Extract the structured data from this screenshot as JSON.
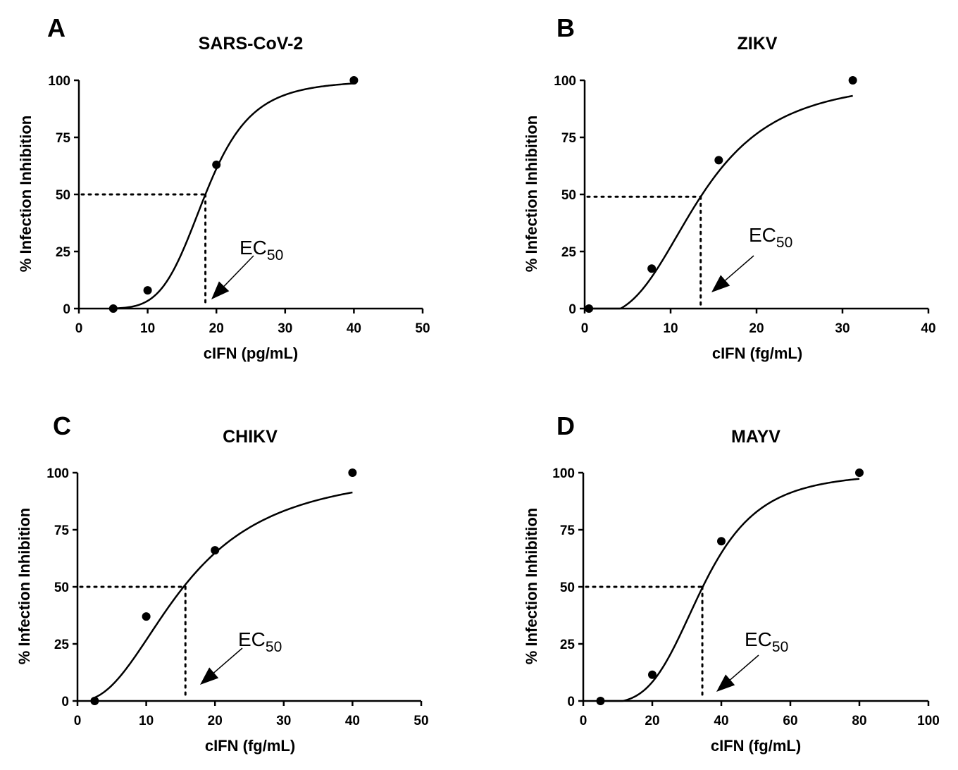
{
  "chart_data": [
    {
      "type": "line",
      "panel": "A",
      "title": "SARS-CoV-2",
      "xlabel": "cIFN (pg/mL)",
      "ylabel": "% Infection Inhibition",
      "xlim": [
        0,
        50
      ],
      "ylim": [
        0,
        100
      ],
      "xticks": [
        0,
        10,
        20,
        30,
        40,
        50
      ],
      "yticks": [
        0,
        25,
        50,
        75,
        100
      ],
      "points": [
        [
          5,
          0
        ],
        [
          10,
          8
        ],
        [
          20,
          63
        ],
        [
          40,
          100
        ]
      ],
      "curve": {
        "bottom": 0,
        "top": 100,
        "ec50": 18.4,
        "hill": 5.5,
        "xstart": 5,
        "xend": 40
      },
      "ec50_value": 18.4,
      "ec50_y": 50,
      "annotation": {
        "main": "EC",
        "sub": "50"
      }
    },
    {
      "type": "line",
      "panel": "B",
      "title": "ZIKV",
      "xlabel": "cIFN (fg/mL)",
      "ylabel": "% Infection Inhibition",
      "xlim": [
        0,
        40
      ],
      "ylim": [
        0,
        100
      ],
      "xticks": [
        0,
        10,
        20,
        30,
        40
      ],
      "yticks": [
        0,
        25,
        50,
        75,
        100
      ],
      "points": [
        [
          0.5,
          0
        ],
        [
          7.8,
          17.5
        ],
        [
          15.6,
          65
        ],
        [
          31.2,
          100
        ]
      ],
      "curve": {
        "bottom": -3,
        "top": 101,
        "ec50": 13.5,
        "hill": 3.0,
        "xstart": 0,
        "xend": 31.2
      },
      "ec50_value": 13.5,
      "ec50_y": 49,
      "annotation": {
        "main": "EC",
        "sub": "50"
      }
    },
    {
      "type": "line",
      "panel": "C",
      "title": "CHIKV",
      "xlabel": "cIFN (fg/mL)",
      "ylabel": "% Infection Inhibition",
      "xlim": [
        0,
        50
      ],
      "ylim": [
        0,
        100
      ],
      "xticks": [
        0,
        10,
        20,
        30,
        40,
        50
      ],
      "yticks": [
        0,
        25,
        50,
        75,
        100
      ],
      "points": [
        [
          2.5,
          0
        ],
        [
          10,
          37
        ],
        [
          20,
          66
        ],
        [
          40,
          100
        ]
      ],
      "curve": {
        "bottom": 0,
        "top": 102,
        "ec50": 15.7,
        "hill": 2.3,
        "xstart": 2.5,
        "xend": 40
      },
      "ec50_value": 15.7,
      "ec50_y": 50,
      "annotation": {
        "main": "EC",
        "sub": "50"
      }
    },
    {
      "type": "line",
      "panel": "D",
      "title": "MAYV",
      "xlabel": "cIFN (fg/mL)",
      "ylabel": "% Infection Inhibition",
      "xlim": [
        0,
        100
      ],
      "ylim": [
        0,
        100
      ],
      "xticks": [
        0,
        20,
        40,
        60,
        80,
        100
      ],
      "yticks": [
        0,
        25,
        50,
        75,
        100
      ],
      "points": [
        [
          5,
          0
        ],
        [
          20,
          11.5
        ],
        [
          40,
          70
        ],
        [
          80,
          100
        ]
      ],
      "curve": {
        "bottom": -1,
        "top": 100.2,
        "ec50": 34.5,
        "hill": 4.2,
        "xstart": 5,
        "xend": 80
      },
      "ec50_value": 34.5,
      "ec50_y": 50,
      "annotation": {
        "main": "EC",
        "sub": "50"
      }
    }
  ]
}
